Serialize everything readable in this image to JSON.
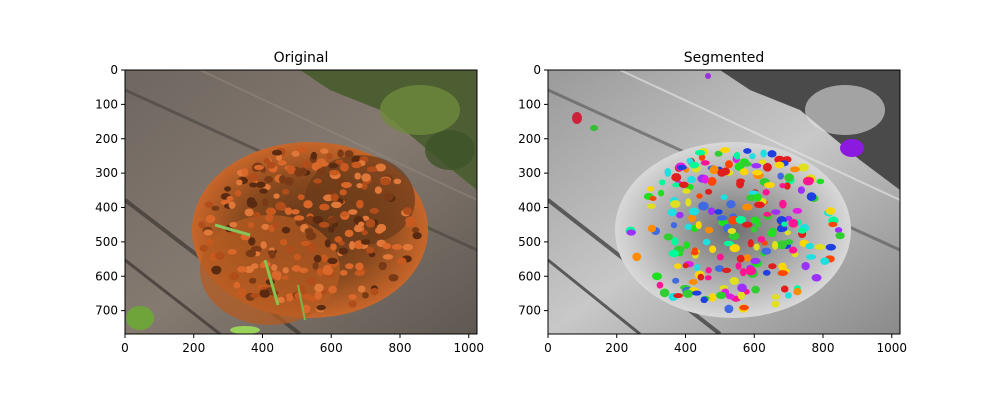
{
  "chart_data": [
    {
      "type": "image",
      "title": "Original",
      "xlim": [
        0,
        1024
      ],
      "ylim": [
        768,
        0
      ],
      "xticks": [
        0,
        200,
        400,
        600,
        800,
        1000
      ],
      "yticks": [
        0,
        100,
        200,
        300,
        400,
        500,
        600,
        700
      ],
      "xtick_labels": [
        "0",
        "200",
        "400",
        "600",
        "800",
        "1000"
      ],
      "ytick_labels": [
        "0",
        "100",
        "200",
        "300",
        "400",
        "500",
        "600",
        "700"
      ],
      "content": "color photo of a cluster of ladybugs on a log"
    },
    {
      "type": "image",
      "title": "Segmented",
      "xlim": [
        0,
        1024
      ],
      "ylim": [
        768,
        0
      ],
      "xticks": [
        0,
        200,
        400,
        600,
        800,
        1000
      ],
      "yticks": [
        0,
        100,
        200,
        300,
        400,
        500,
        600,
        700
      ],
      "xtick_labels": [
        "0",
        "200",
        "400",
        "600",
        "800",
        "1000"
      ],
      "ytick_labels": [
        "0",
        "100",
        "200",
        "300",
        "400",
        "500",
        "600",
        "700"
      ],
      "content": "grayscale photo with colored segment overlays on each ladybug"
    }
  ]
}
